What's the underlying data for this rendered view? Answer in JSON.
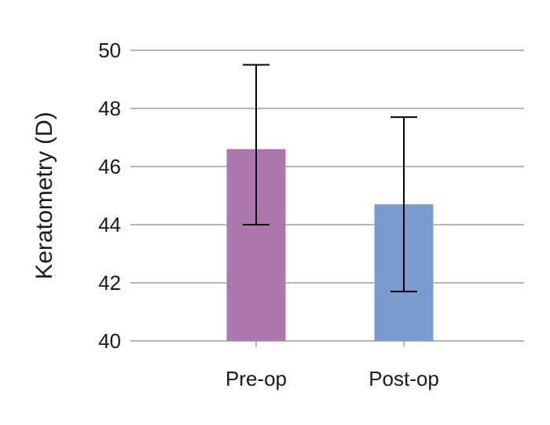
{
  "chart_data": {
    "type": "bar",
    "title": "",
    "xlabel": "",
    "ylabel": "Keratometry (D)",
    "categories": [
      "Pre-op",
      "Post-op"
    ],
    "values": [
      46.6,
      44.7
    ],
    "error_low": [
      44.0,
      41.7
    ],
    "error_high": [
      49.5,
      47.7
    ],
    "bar_colors": [
      "#ad76ad",
      "#7b9cce"
    ],
    "ylim": [
      40,
      50
    ],
    "yticks": [
      40,
      42,
      44,
      46,
      48,
      50
    ],
    "ytick_labels": [
      "40",
      "42",
      "44",
      "46",
      "48",
      "50"
    ],
    "grid": true,
    "legend": "none"
  }
}
